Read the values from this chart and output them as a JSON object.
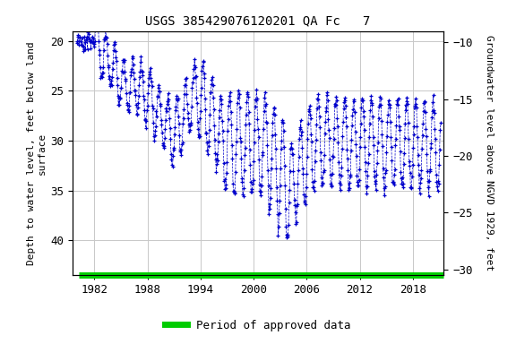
{
  "title": "USGS 385429076120201 QA Fc   7",
  "ylabel_left": "Depth to water level, feet below land\nsurface",
  "ylabel_right": "Groundwater level above NGVD 1929, feet",
  "ylim_left": [
    43.5,
    19.0
  ],
  "ylim_right": [
    -30.5,
    -9.0
  ],
  "xlim": [
    1979.5,
    2021.5
  ],
  "xticks": [
    1982,
    1988,
    1994,
    2000,
    2006,
    2012,
    2018
  ],
  "yticks_left": [
    20,
    25,
    30,
    35,
    40
  ],
  "yticks_right": [
    -10,
    -15,
    -20,
    -25,
    -30
  ],
  "data_color": "#0000cc",
  "bar_color": "#00cc00",
  "legend_label": "Period of approved data",
  "background_color": "#ffffff",
  "grid_color": "#c8c8c8",
  "title_fontsize": 10,
  "axis_label_fontsize": 8,
  "tick_fontsize": 9,
  "approved_start": 1980.5,
  "approved_end": 2021.2
}
